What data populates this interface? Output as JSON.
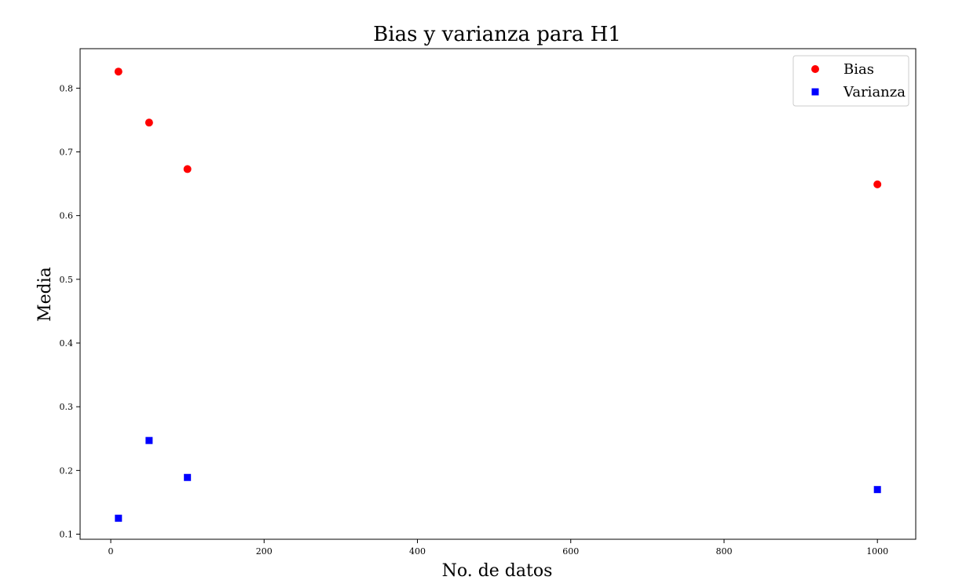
{
  "chart_data": {
    "type": "scatter",
    "title": "Bias y varianza para H1",
    "xlabel": "No. de datos",
    "ylabel": "Media",
    "xlim": [
      -40,
      1050
    ],
    "ylim": [
      0.092,
      0.862
    ],
    "xticks": [
      0,
      200,
      400,
      600,
      800,
      1000
    ],
    "yticks": [
      0.1,
      0.2,
      0.3,
      0.4,
      0.5,
      0.6,
      0.7,
      0.8
    ],
    "grid": false,
    "legend_position": "top-right",
    "series": [
      {
        "name": "Bias",
        "marker": "circle",
        "color": "#ff0000",
        "points": [
          [
            10,
            0.826
          ],
          [
            50,
            0.746
          ],
          [
            100,
            0.673
          ],
          [
            1000,
            0.649
          ]
        ]
      },
      {
        "name": "Varianza",
        "marker": "square",
        "color": "#0000ff",
        "points": [
          [
            10,
            0.125
          ],
          [
            50,
            0.247
          ],
          [
            100,
            0.189
          ],
          [
            1000,
            0.17
          ]
        ]
      }
    ]
  }
}
